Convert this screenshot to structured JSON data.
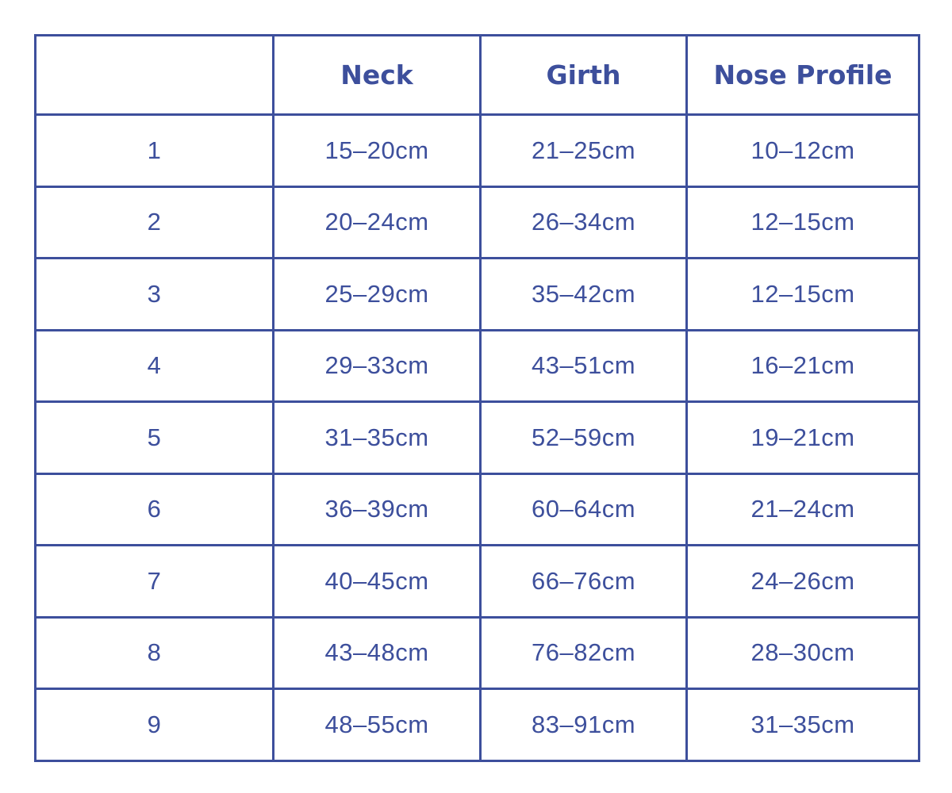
{
  "table": {
    "headers": [
      "",
      "Neck",
      "Girth",
      "Nose Profile"
    ],
    "rows": [
      [
        "1",
        "15–20cm",
        "21–25cm",
        "10–12cm"
      ],
      [
        "2",
        "20–24cm",
        "26–34cm",
        "12–15cm"
      ],
      [
        "3",
        "25–29cm",
        "35–42cm",
        "12–15cm"
      ],
      [
        "4",
        "29–33cm",
        "43–51cm",
        "16–21cm"
      ],
      [
        "5",
        "31–35cm",
        "52–59cm",
        "19–21cm"
      ],
      [
        "6",
        "36–39cm",
        "60–64cm",
        "21–24cm"
      ],
      [
        "7",
        "40–45cm",
        "66–76cm",
        "24–26cm"
      ],
      [
        "8",
        "43–48cm",
        "76–82cm",
        "28–30cm"
      ],
      [
        "9",
        "48–55cm",
        "83–91cm",
        "31–35cm"
      ]
    ]
  },
  "colors": {
    "accent": "#3d4f9c"
  }
}
